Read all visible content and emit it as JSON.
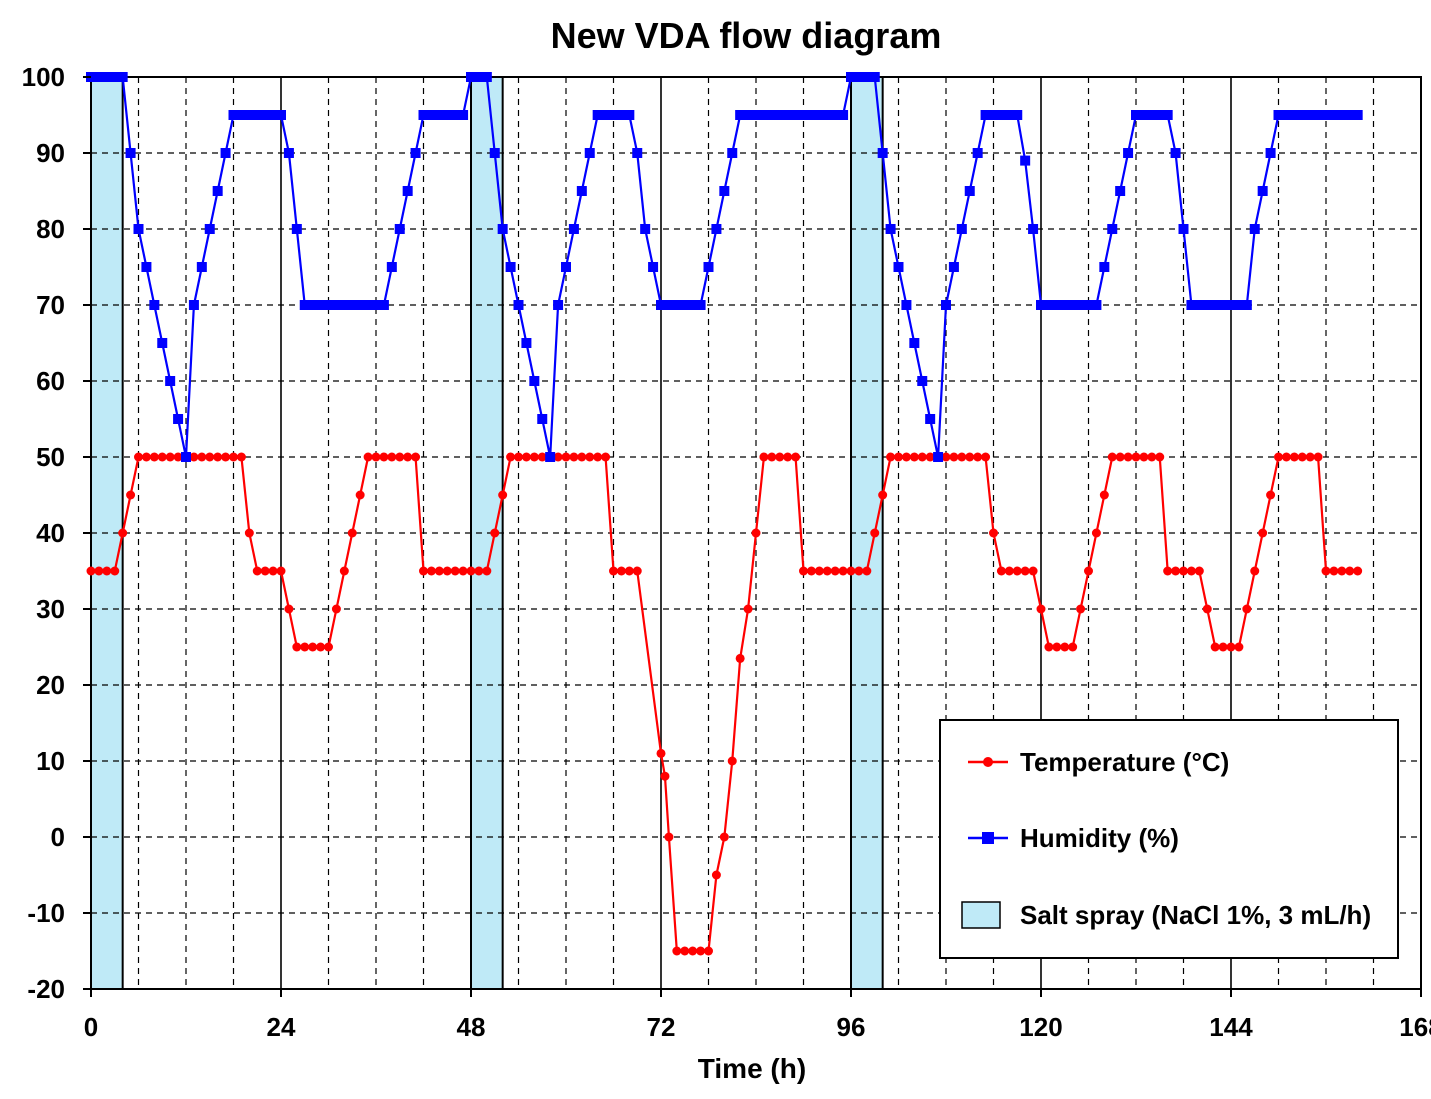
{
  "chart_data": {
    "type": "line",
    "title": "New VDA flow diagram",
    "xlabel": "Time (h)",
    "ylabel": "",
    "xlim": [
      0,
      168
    ],
    "ylim": [
      -20,
      100
    ],
    "x_ticks": [
      0,
      24,
      48,
      72,
      96,
      120,
      144,
      168
    ],
    "y_ticks": [
      100,
      90,
      80,
      70,
      60,
      50,
      40,
      30,
      20,
      10,
      0,
      -10,
      -20
    ],
    "x_minor_grid_step": 6,
    "grid": true,
    "legend_position": "bottom-right",
    "colors": {
      "temperature": "#ff0000",
      "humidity": "#0000ff",
      "salt_spray": "#bfeaf7"
    },
    "legend": [
      {
        "label": "Temperature (°C)",
        "marker": "circle"
      },
      {
        "label": "Humidity (%)",
        "marker": "square"
      },
      {
        "label": "Salt spray (NaCl 1%, 3 mL/h)",
        "marker": "box"
      }
    ],
    "series": [
      {
        "name": "Temperature (°C)",
        "marker": "circle",
        "points": [
          [
            0,
            35
          ],
          [
            1,
            35
          ],
          [
            2,
            35
          ],
          [
            3,
            35
          ],
          [
            4,
            40
          ],
          [
            5,
            45
          ],
          [
            6,
            50
          ],
          [
            7,
            50
          ],
          [
            8,
            50
          ],
          [
            9,
            50
          ],
          [
            10,
            50
          ],
          [
            11,
            50
          ],
          [
            12,
            50
          ],
          [
            13,
            50
          ],
          [
            14,
            50
          ],
          [
            15,
            50
          ],
          [
            16,
            50
          ],
          [
            17,
            50
          ],
          [
            18,
            50
          ],
          [
            19,
            50
          ],
          [
            20,
            40
          ],
          [
            21,
            35
          ],
          [
            22,
            35
          ],
          [
            23,
            35
          ],
          [
            24,
            35
          ],
          [
            25,
            30
          ],
          [
            26,
            25
          ],
          [
            27,
            25
          ],
          [
            28,
            25
          ],
          [
            29,
            25
          ],
          [
            30,
            25
          ],
          [
            31,
            30
          ],
          [
            32,
            35
          ],
          [
            33,
            40
          ],
          [
            34,
            45
          ],
          [
            35,
            50
          ],
          [
            36,
            50
          ],
          [
            37,
            50
          ],
          [
            38,
            50
          ],
          [
            39,
            50
          ],
          [
            40,
            50
          ],
          [
            41,
            50
          ],
          [
            42,
            35
          ],
          [
            43,
            35
          ],
          [
            44,
            35
          ],
          [
            45,
            35
          ],
          [
            46,
            35
          ],
          [
            47,
            35
          ],
          [
            48,
            35
          ],
          [
            49,
            35
          ],
          [
            50,
            35
          ],
          [
            51,
            40
          ],
          [
            52,
            45
          ],
          [
            53,
            50
          ],
          [
            54,
            50
          ],
          [
            55,
            50
          ],
          [
            56,
            50
          ],
          [
            57,
            50
          ],
          [
            58,
            50
          ],
          [
            59,
            50
          ],
          [
            60,
            50
          ],
          [
            61,
            50
          ],
          [
            62,
            50
          ],
          [
            63,
            50
          ],
          [
            64,
            50
          ],
          [
            65,
            50
          ],
          [
            66,
            35
          ],
          [
            67,
            35
          ],
          [
            68,
            35
          ],
          [
            69,
            35
          ],
          [
            72,
            11
          ],
          [
            72.5,
            8
          ],
          [
            73,
            0
          ],
          [
            74,
            -15
          ],
          [
            75,
            -15
          ],
          [
            76,
            -15
          ],
          [
            77,
            -15
          ],
          [
            78,
            -15
          ],
          [
            79,
            -5
          ],
          [
            80,
            0
          ],
          [
            81,
            10
          ],
          [
            82,
            23.5
          ],
          [
            83,
            30
          ],
          [
            84,
            40
          ],
          [
            85,
            50
          ],
          [
            86,
            50
          ],
          [
            87,
            50
          ],
          [
            88,
            50
          ],
          [
            89,
            50
          ],
          [
            90,
            35
          ],
          [
            91,
            35
          ],
          [
            92,
            35
          ],
          [
            93,
            35
          ],
          [
            94,
            35
          ],
          [
            95,
            35
          ],
          [
            96,
            35
          ],
          [
            97,
            35
          ],
          [
            98,
            35
          ],
          [
            99,
            40
          ],
          [
            100,
            45
          ],
          [
            101,
            50
          ],
          [
            102,
            50
          ],
          [
            103,
            50
          ],
          [
            104,
            50
          ],
          [
            105,
            50
          ],
          [
            106,
            50
          ],
          [
            107,
            50
          ],
          [
            108,
            50
          ],
          [
            109,
            50
          ],
          [
            110,
            50
          ],
          [
            111,
            50
          ],
          [
            112,
            50
          ],
          [
            113,
            50
          ],
          [
            114,
            40
          ],
          [
            115,
            35
          ],
          [
            116,
            35
          ],
          [
            117,
            35
          ],
          [
            118,
            35
          ],
          [
            119,
            35
          ],
          [
            120,
            30
          ],
          [
            121,
            25
          ],
          [
            122,
            25
          ],
          [
            123,
            25
          ],
          [
            124,
            25
          ],
          [
            125,
            30
          ],
          [
            126,
            35
          ],
          [
            127,
            40
          ],
          [
            128,
            45
          ],
          [
            129,
            50
          ],
          [
            130,
            50
          ],
          [
            131,
            50
          ],
          [
            132,
            50
          ],
          [
            133,
            50
          ],
          [
            134,
            50
          ],
          [
            135,
            50
          ],
          [
            136,
            35
          ],
          [
            137,
            35
          ],
          [
            138,
            35
          ],
          [
            139,
            35
          ],
          [
            140,
            35
          ],
          [
            141,
            30
          ],
          [
            142,
            25
          ],
          [
            143,
            25
          ],
          [
            144,
            25
          ],
          [
            145,
            25
          ],
          [
            146,
            30
          ],
          [
            147,
            35
          ],
          [
            148,
            40
          ],
          [
            149,
            45
          ],
          [
            150,
            50
          ],
          [
            151,
            50
          ],
          [
            152,
            50
          ],
          [
            153,
            50
          ],
          [
            154,
            50
          ],
          [
            155,
            50
          ],
          [
            156,
            35
          ],
          [
            157,
            35
          ],
          [
            158,
            35
          ],
          [
            159,
            35
          ],
          [
            160,
            35
          ]
        ]
      },
      {
        "name": "Humidity (%)",
        "marker": "square",
        "points": [
          [
            0,
            100
          ],
          [
            1,
            100
          ],
          [
            2,
            100
          ],
          [
            3,
            100
          ],
          [
            4,
            100
          ],
          [
            5,
            90
          ],
          [
            6,
            80
          ],
          [
            7,
            75
          ],
          [
            8,
            70
          ],
          [
            9,
            65
          ],
          [
            10,
            60
          ],
          [
            11,
            55
          ],
          [
            12,
            50
          ],
          [
            13,
            70
          ],
          [
            14,
            75
          ],
          [
            15,
            80
          ],
          [
            16,
            85
          ],
          [
            17,
            90
          ],
          [
            18,
            95
          ],
          [
            19,
            95
          ],
          [
            20,
            95
          ],
          [
            21,
            95
          ],
          [
            22,
            95
          ],
          [
            23,
            95
          ],
          [
            24,
            95
          ],
          [
            25,
            90
          ],
          [
            26,
            80
          ],
          [
            27,
            70
          ],
          [
            28,
            70
          ],
          [
            29,
            70
          ],
          [
            30,
            70
          ],
          [
            31,
            70
          ],
          [
            32,
            70
          ],
          [
            33,
            70
          ],
          [
            34,
            70
          ],
          [
            35,
            70
          ],
          [
            36,
            70
          ],
          [
            37,
            70
          ],
          [
            38,
            75
          ],
          [
            39,
            80
          ],
          [
            40,
            85
          ],
          [
            41,
            90
          ],
          [
            42,
            95
          ],
          [
            43,
            95
          ],
          [
            44,
            95
          ],
          [
            45,
            95
          ],
          [
            46,
            95
          ],
          [
            47,
            95
          ],
          [
            48,
            100
          ],
          [
            49,
            100
          ],
          [
            50,
            100
          ],
          [
            51,
            90
          ],
          [
            52,
            80
          ],
          [
            53,
            75
          ],
          [
            54,
            70
          ],
          [
            55,
            65
          ],
          [
            56,
            60
          ],
          [
            57,
            55
          ],
          [
            58,
            50
          ],
          [
            59,
            70
          ],
          [
            60,
            75
          ],
          [
            61,
            80
          ],
          [
            62,
            85
          ],
          [
            63,
            90
          ],
          [
            64,
            95
          ],
          [
            65,
            95
          ],
          [
            66,
            95
          ],
          [
            67,
            95
          ],
          [
            68,
            95
          ],
          [
            69,
            90
          ],
          [
            70,
            80
          ],
          [
            71,
            75
          ],
          [
            72,
            70
          ],
          [
            73,
            70
          ],
          [
            74,
            70
          ],
          [
            75,
            70
          ],
          [
            76,
            70
          ],
          [
            77,
            70
          ],
          [
            78,
            75
          ],
          [
            79,
            80
          ],
          [
            80,
            85
          ],
          [
            81,
            90
          ],
          [
            82,
            95
          ],
          [
            83,
            95
          ],
          [
            84,
            95
          ],
          [
            85,
            95
          ],
          [
            86,
            95
          ],
          [
            87,
            95
          ],
          [
            88,
            95
          ],
          [
            89,
            95
          ],
          [
            90,
            95
          ],
          [
            91,
            95
          ],
          [
            92,
            95
          ],
          [
            93,
            95
          ],
          [
            94,
            95
          ],
          [
            95,
            95
          ],
          [
            96,
            100
          ],
          [
            97,
            100
          ],
          [
            98,
            100
          ],
          [
            99,
            100
          ],
          [
            100,
            90
          ],
          [
            101,
            80
          ],
          [
            102,
            75
          ],
          [
            103,
            70
          ],
          [
            104,
            65
          ],
          [
            105,
            60
          ],
          [
            106,
            55
          ],
          [
            107,
            50
          ],
          [
            108,
            70
          ],
          [
            109,
            75
          ],
          [
            110,
            80
          ],
          [
            111,
            85
          ],
          [
            112,
            90
          ],
          [
            113,
            95
          ],
          [
            114,
            95
          ],
          [
            115,
            95
          ],
          [
            116,
            95
          ],
          [
            117,
            95
          ],
          [
            118,
            89
          ],
          [
            119,
            80
          ],
          [
            120,
            70
          ],
          [
            121,
            70
          ],
          [
            122,
            70
          ],
          [
            123,
            70
          ],
          [
            124,
            70
          ],
          [
            125,
            70
          ],
          [
            126,
            70
          ],
          [
            127,
            70
          ],
          [
            128,
            75
          ],
          [
            129,
            80
          ],
          [
            130,
            85
          ],
          [
            131,
            90
          ],
          [
            132,
            95
          ],
          [
            133,
            95
          ],
          [
            134,
            95
          ],
          [
            135,
            95
          ],
          [
            136,
            95
          ],
          [
            137,
            90
          ],
          [
            138,
            80
          ],
          [
            139,
            70
          ],
          [
            140,
            70
          ],
          [
            141,
            70
          ],
          [
            142,
            70
          ],
          [
            143,
            70
          ],
          [
            144,
            70
          ],
          [
            145,
            70
          ],
          [
            146,
            70
          ],
          [
            147,
            80
          ],
          [
            148,
            85
          ],
          [
            149,
            90
          ],
          [
            150,
            95
          ],
          [
            151,
            95
          ],
          [
            152,
            95
          ],
          [
            153,
            95
          ],
          [
            154,
            95
          ],
          [
            155,
            95
          ],
          [
            156,
            95
          ],
          [
            157,
            95
          ],
          [
            158,
            95
          ],
          [
            159,
            95
          ],
          [
            160,
            95
          ]
        ]
      }
    ],
    "salt_spray_intervals": [
      [
        0,
        4
      ],
      [
        48,
        52
      ],
      [
        96,
        100
      ]
    ]
  }
}
